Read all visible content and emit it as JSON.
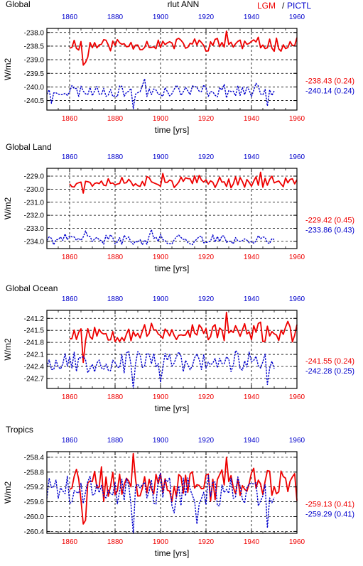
{
  "header": {
    "left_title": "Global",
    "center_title": "rlut ANN",
    "legend_lgm": "LGM",
    "legend_sep": "/",
    "legend_pictl": "PICTL"
  },
  "colors": {
    "lgm": "#ee0000",
    "pictl": "#0000cc",
    "frame": "#000000",
    "grid": "#000000"
  },
  "chart_data": [
    {
      "type": "line",
      "title": "Global",
      "xlabel": "time [yrs]",
      "ylabel": "W/m2",
      "xlim": [
        1850,
        1960
      ],
      "ylim": [
        -240.85,
        -237.85
      ],
      "bottom_ticks": [
        "1860",
        "1880",
        "1900",
        "1920",
        "1940",
        "1960"
      ],
      "top_ticks": [
        "1860",
        "1880",
        "1900",
        "1920",
        "1940",
        "1960"
      ],
      "yticks": [
        -238.0,
        -238.5,
        -239.0,
        -239.5,
        -240.0,
        -240.5
      ],
      "ytick_labels": [
        "-238.0",
        "-238.5",
        "-239.0",
        "-239.5",
        "-240.0",
        "-240.5"
      ],
      "grid": true,
      "series": [
        {
          "name": "LGM",
          "stat": "-238.43 (0.24)",
          "x_start": 1860,
          "x_end": 1960,
          "base": -238.43,
          "amp": 0.22,
          "seed": 11,
          "events": [
            [
              1866,
              -239.2
            ],
            [
              1867,
              -239.1
            ],
            [
              1868,
              -238.9
            ],
            [
              1929,
              -237.95
            ]
          ]
        },
        {
          "name": "PICTL",
          "stat": "-240.14 (0.24)",
          "x_start": 1850,
          "x_end": 1950,
          "base": -240.14,
          "amp": 0.22,
          "seed": 23,
          "events": [
            [
              1852,
              -240.6
            ],
            [
              1888,
              -240.8
            ],
            [
              1893,
              -239.7
            ],
            [
              1947,
              -240.7
            ]
          ]
        }
      ]
    },
    {
      "type": "line",
      "title": "Global Land",
      "xlabel": "time [yrs]",
      "ylabel": "W/m2",
      "xlim": [
        1850,
        1960
      ],
      "ylim": [
        -234.55,
        -228.4
      ],
      "bottom_ticks": [
        "1860",
        "1880",
        "1900",
        "1920",
        "1940",
        "1960"
      ],
      "top_ticks": [
        "1860",
        "1880",
        "1900",
        "1920",
        "1940",
        "1960"
      ],
      "yticks": [
        -229.0,
        -230.0,
        -231.0,
        -232.0,
        -233.0,
        -234.0
      ],
      "ytick_labels": [
        "-229.0",
        "-230.0",
        "-231.0",
        "-232.0",
        "-233.0",
        "-234.0"
      ],
      "grid": true,
      "series": [
        {
          "name": "LGM",
          "stat": "-229.42 (0.45)",
          "x_start": 1860,
          "x_end": 1960,
          "base": -229.42,
          "amp": 0.4,
          "seed": 37,
          "events": [
            [
              1866,
              -230.3
            ],
            [
              1901,
              -228.8
            ],
            [
              1944,
              -228.7
            ]
          ]
        },
        {
          "name": "PICTL",
          "stat": "-233.86 (0.43)",
          "x_start": 1850,
          "x_end": 1950,
          "base": -233.86,
          "amp": 0.35,
          "seed": 41,
          "events": [
            [
              1867,
              -233.2
            ],
            [
              1880,
              -234.2
            ],
            [
              1896,
              -233.1
            ],
            [
              1905,
              -234.2
            ]
          ]
        }
      ]
    },
    {
      "type": "line",
      "title": "Global Ocean",
      "xlabel": "time [yrs]",
      "ylabel": "W/m2",
      "xlim": [
        1850,
        1960
      ],
      "ylim": [
        -242.95,
        -241.0
      ],
      "bottom_ticks": [
        "1860",
        "1880",
        "1900",
        "1920",
        "1940",
        "1960"
      ],
      "top_ticks": [
        "1860",
        "1880",
        "1900",
        "1920",
        "1940",
        "1960"
      ],
      "yticks": [
        -241.2,
        -241.5,
        -241.8,
        -242.1,
        -242.4,
        -242.7
      ],
      "ytick_labels": [
        "-241.2",
        "-241.5",
        "-241.8",
        "-242.1",
        "-242.4",
        "-242.7"
      ],
      "grid": true,
      "series": [
        {
          "name": "LGM",
          "stat": "-241.55 (0.24)",
          "x_start": 1860,
          "x_end": 1960,
          "base": -241.55,
          "amp": 0.22,
          "seed": 53,
          "events": [
            [
              1866,
              -242.3
            ],
            [
              1929,
              -241.05
            ]
          ]
        },
        {
          "name": "PICTL",
          "stat": "-242.28 (0.25)",
          "x_start": 1850,
          "x_end": 1950,
          "base": -242.28,
          "amp": 0.24,
          "seed": 67,
          "events": [
            [
              1888,
              -242.95
            ],
            [
              1900,
              -242.8
            ],
            [
              1947,
              -242.85
            ]
          ]
        }
      ]
    },
    {
      "type": "line",
      "title": "Tropics",
      "xlabel": "time [yrs]",
      "ylabel": "W/m2",
      "xlim": [
        1850,
        1960
      ],
      "ylim": [
        -260.45,
        -258.25
      ],
      "bottom_ticks": [
        "1860",
        "1880",
        "1900",
        "1920",
        "1940",
        "1960"
      ],
      "top_ticks": [
        "1860",
        "1880",
        "1900",
        "1920",
        "1940",
        "1960"
      ],
      "yticks": [
        -258.4,
        -258.8,
        -259.2,
        -259.6,
        -260.0,
        -260.4
      ],
      "ytick_labels": [
        "-258.4",
        "-258.8",
        "-259.2",
        "-259.6",
        "-260.0",
        "-260.4"
      ],
      "grid": true,
      "series": [
        {
          "name": "LGM",
          "stat": "-259.13 (0.41)",
          "x_start": 1860,
          "x_end": 1960,
          "base": -259.13,
          "amp": 0.4,
          "seed": 71,
          "events": [
            [
              1866,
              -260.2
            ],
            [
              1867,
              -260.1
            ],
            [
              1888,
              -258.3
            ],
            [
              1929,
              -258.4
            ]
          ]
        },
        {
          "name": "PICTL",
          "stat": "-259.29 (0.41)",
          "x_start": 1850,
          "x_end": 1950,
          "base": -259.29,
          "amp": 0.4,
          "seed": 89,
          "events": [
            [
              1888,
              -260.45
            ],
            [
              1906,
              -259.9
            ],
            [
              1916,
              -260.2
            ],
            [
              1947,
              -260.3
            ]
          ]
        }
      ]
    }
  ]
}
